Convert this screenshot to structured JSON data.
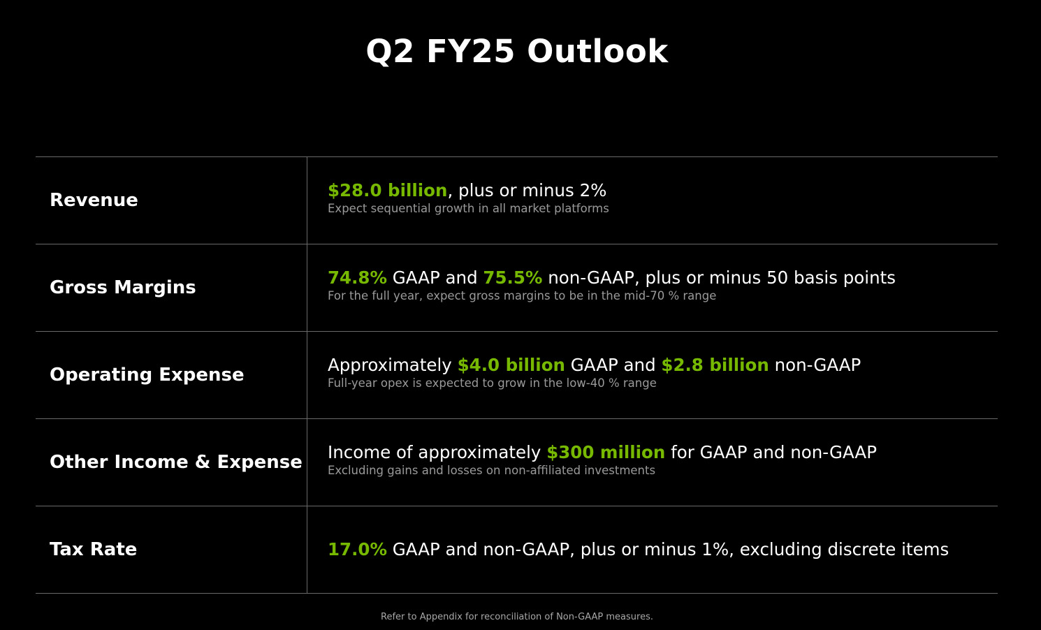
{
  "title": "Q2 FY25 Outlook",
  "colors": {
    "background": "#000000",
    "highlight": "#76b900",
    "text": "#ffffff",
    "subtext": "#9a9a9a"
  },
  "rows": [
    {
      "label": "Revenue",
      "main": [
        "$28.0 billion",
        ", plus or minus 2%"
      ],
      "sub": "Expect sequential growth in all market platforms"
    },
    {
      "label": "Gross Margins",
      "main": [
        "74.8%",
        " GAAP and ",
        "75.5%",
        " non-GAAP, plus or minus 50 basis points"
      ],
      "sub": "For the full year, expect gross margins to be in the mid-70 % range"
    },
    {
      "label": "Operating Expense",
      "main": [
        "Approximately ",
        "$4.0 billion",
        " GAAP and ",
        "$2.8 billion",
        " non-GAAP"
      ],
      "sub": "Full-year opex is expected to grow in the low-40 % range"
    },
    {
      "label": "Other Income & Expense",
      "main": [
        "Income of approximately ",
        "$300 million",
        " for GAAP and non-GAAP"
      ],
      "sub": "Excluding gains and losses on non-affiliated investments"
    },
    {
      "label": "Tax Rate",
      "main": [
        "17.0%",
        " GAAP and non-GAAP, plus or minus 1%, excluding discrete items"
      ],
      "sub": ""
    }
  ],
  "footnote": "Refer to Appendix for reconciliation of Non-GAAP measures."
}
